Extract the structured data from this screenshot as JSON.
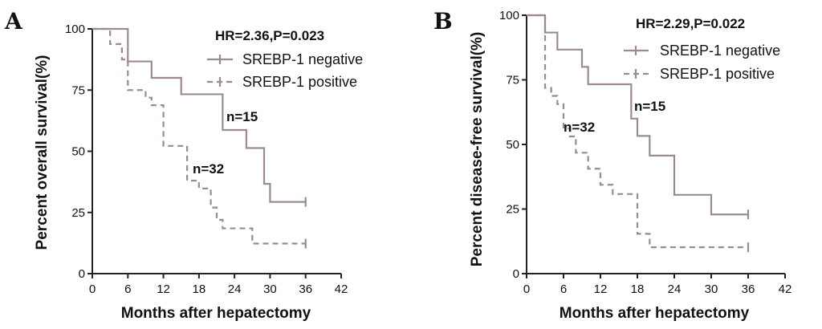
{
  "chart_data": [
    {
      "type": "line",
      "subtype": "kaplan-meier",
      "panel_label": "A",
      "title": "",
      "xlabel": "Months after hepatectomy",
      "ylabel": "Percent overall survival(%)",
      "xlim": [
        0,
        42
      ],
      "ylim": [
        0,
        100
      ],
      "xticks": [
        0,
        6,
        12,
        18,
        24,
        30,
        36,
        42
      ],
      "yticks": [
        0,
        25,
        50,
        75,
        100
      ],
      "stats_text": "HR=2.36,P=0.023",
      "legend_position": "top-right",
      "series": [
        {
          "name": "SREBP-1 negative",
          "color": "#9c8c89",
          "dash": "solid",
          "n_label": "n=15",
          "steps": [
            [
              0,
              100
            ],
            [
              6,
              86.7
            ],
            [
              10,
              80
            ],
            [
              15,
              73.3
            ],
            [
              22,
              58.7
            ],
            [
              26,
              51.3
            ],
            [
              29,
              36.7
            ],
            [
              30,
              29.3
            ],
            [
              36,
              29.3
            ]
          ],
          "censor": [
            [
              36,
              29.3
            ]
          ]
        },
        {
          "name": "SREBP-1 positive",
          "color": "#9c8c89",
          "dash": "dashed",
          "n_label": "n=32",
          "steps": [
            [
              0,
              100
            ],
            [
              3,
              93.8
            ],
            [
              5,
              87.5
            ],
            [
              6,
              75
            ],
            [
              9,
              71.9
            ],
            [
              10,
              68.8
            ],
            [
              12,
              52.2
            ],
            [
              16,
              38
            ],
            [
              18,
              34.8
            ],
            [
              20,
              27
            ],
            [
              21,
              22
            ],
            [
              22,
              18.5
            ],
            [
              27,
              12.3
            ],
            [
              36,
              12.3
            ]
          ],
          "censor": [
            [
              36,
              12.3
            ]
          ]
        }
      ]
    },
    {
      "type": "line",
      "subtype": "kaplan-meier",
      "panel_label": "B",
      "title": "",
      "xlabel": "Months after hepatectomy",
      "ylabel": "Percent disease-free survival(%)",
      "xlim": [
        0,
        42
      ],
      "ylim": [
        0,
        100
      ],
      "xticks": [
        0,
        6,
        12,
        18,
        24,
        30,
        36,
        42
      ],
      "yticks": [
        0,
        25,
        50,
        75,
        100
      ],
      "stats_text": "HR=2.29,P=0.022",
      "legend_position": "top-right",
      "series": [
        {
          "name": "SREBP-1 negative",
          "color": "#9c8c89",
          "dash": "solid",
          "n_label": "n=15",
          "steps": [
            [
              0,
              100
            ],
            [
              3,
              93.3
            ],
            [
              5,
              86.7
            ],
            [
              9,
              80
            ],
            [
              10,
              73.3
            ],
            [
              17,
              60
            ],
            [
              18,
              53.3
            ],
            [
              20,
              45.7
            ],
            [
              24,
              30.5
            ],
            [
              30,
              22.9
            ],
            [
              36,
              22.9
            ]
          ],
          "censor": [
            [
              36,
              22.9
            ]
          ]
        },
        {
          "name": "SREBP-1 positive",
          "color": "#9c8c89",
          "dash": "dashed",
          "n_label": "n=32",
          "steps": [
            [
              0,
              100
            ],
            [
              3,
              71.9
            ],
            [
              4,
              68.8
            ],
            [
              5,
              65.6
            ],
            [
              6,
              56.2
            ],
            [
              7,
              53.1
            ],
            [
              8,
              46.8
            ],
            [
              10,
              40.6
            ],
            [
              12,
              34.4
            ],
            [
              14,
              30.8
            ],
            [
              18,
              15.4
            ],
            [
              20,
              10.2
            ],
            [
              36,
              10.2
            ]
          ],
          "censor": [
            [
              36,
              10.2
            ]
          ]
        }
      ]
    }
  ]
}
